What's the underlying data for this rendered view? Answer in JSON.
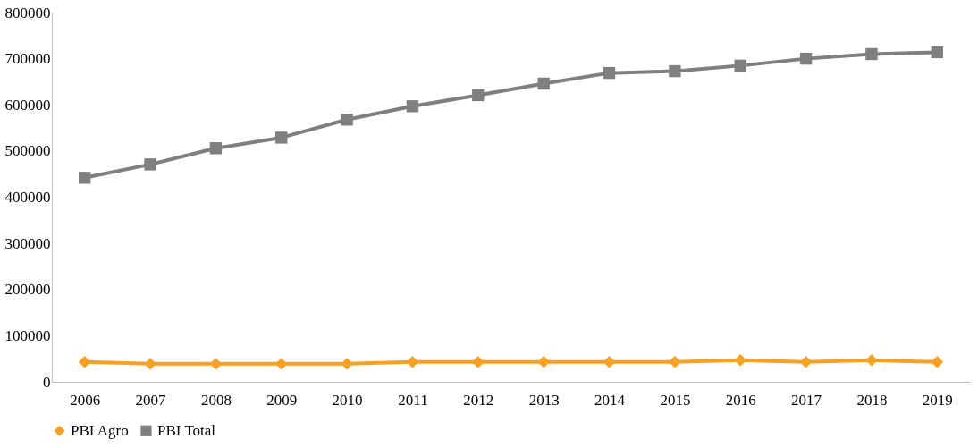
{
  "chart_data": {
    "type": "line",
    "categories": [
      "2006",
      "2007",
      "2008",
      "2009",
      "2010",
      "2011",
      "2012",
      "2013",
      "2014",
      "2015",
      "2016",
      "2017",
      "2018",
      "2019"
    ],
    "series": [
      {
        "name": "PBI Agro",
        "color": "#f7a023",
        "marker": "diamond",
        "values": [
          43000,
          39000,
          39000,
          39000,
          39000,
          43000,
          43000,
          43000,
          43000,
          43000,
          47000,
          43000,
          47000,
          43000
        ]
      },
      {
        "name": "PBI Total",
        "color": "#7f7f7f",
        "marker": "square",
        "values": [
          442000,
          471000,
          506000,
          529000,
          568000,
          597000,
          621000,
          646000,
          669000,
          673000,
          685000,
          700000,
          710000,
          714000
        ]
      }
    ],
    "ylim": [
      0,
      800000
    ],
    "yticks": [
      0,
      100000,
      200000,
      300000,
      400000,
      500000,
      600000,
      700000,
      800000
    ],
    "grid": false,
    "legend": "bottom",
    "line_style": "solid"
  }
}
